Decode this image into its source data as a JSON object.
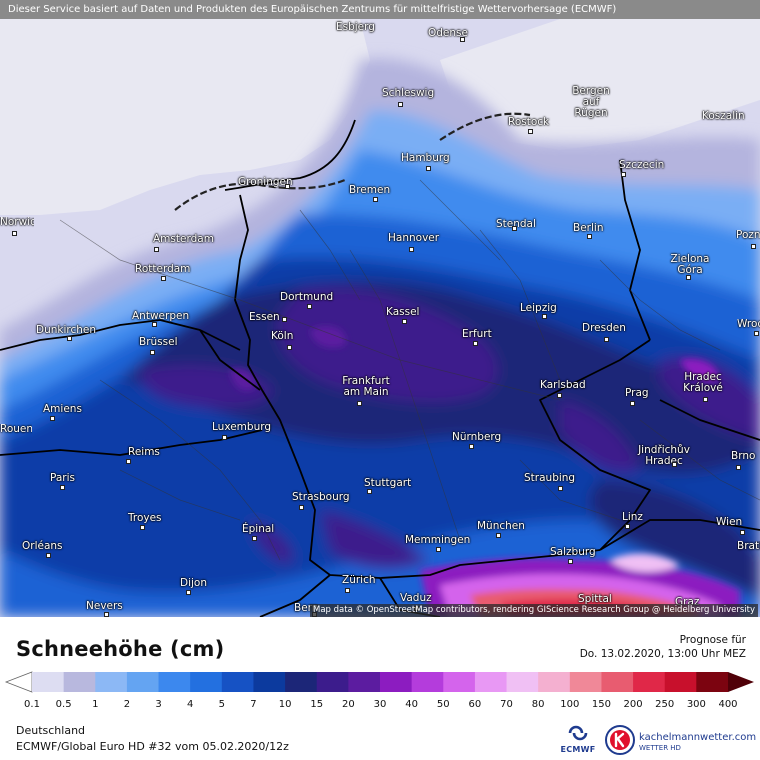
{
  "header": {
    "banner": "Dieser Service basiert auf Daten und Produkten des Europäischen Zentrums für mittelfristige Wettervorhersage (ECMWF)",
    "attribution": "Map data © OpenStreetMap contributors, rendering GIScience Research Group @ Heidelberg University"
  },
  "cities": [
    {
      "name": "Esbjerg"
    },
    {
      "name": "Odense"
    },
    {
      "name": "Schleswig"
    },
    {
      "name": "Bergen auf Rügen"
    },
    {
      "name": "Rostock"
    },
    {
      "name": "Koszalin"
    },
    {
      "name": "Hamburg"
    },
    {
      "name": "Szczecin"
    },
    {
      "name": "Groningen"
    },
    {
      "name": "Bremen"
    },
    {
      "name": "Norwich"
    },
    {
      "name": "Amsterdam"
    },
    {
      "name": "Hannover"
    },
    {
      "name": "Stendal"
    },
    {
      "name": "Berlin"
    },
    {
      "name": "Poznań"
    },
    {
      "name": "Rotterdam"
    },
    {
      "name": "Zielona Góra"
    },
    {
      "name": "Dortmund"
    },
    {
      "name": "Antwerpen"
    },
    {
      "name": "Essen"
    },
    {
      "name": "Kassel"
    },
    {
      "name": "Leipzig"
    },
    {
      "name": "Dunkirchen"
    },
    {
      "name": "Brüssel"
    },
    {
      "name": "Köln"
    },
    {
      "name": "Erfurt"
    },
    {
      "name": "Dresden"
    },
    {
      "name": "Wrocław"
    },
    {
      "name": "Hradec Králové"
    },
    {
      "name": "Frankfurt am Main"
    },
    {
      "name": "Karlsbad"
    },
    {
      "name": "Amiens"
    },
    {
      "name": "Prag"
    },
    {
      "name": "Rouen"
    },
    {
      "name": "Luxemburg"
    },
    {
      "name": "Nürnberg"
    },
    {
      "name": "Jindřichův Hradec"
    },
    {
      "name": "Reims"
    },
    {
      "name": "Brno"
    },
    {
      "name": "Paris"
    },
    {
      "name": "Stuttgart"
    },
    {
      "name": "Straubing"
    },
    {
      "name": "Strasbourg"
    },
    {
      "name": "Troyes"
    },
    {
      "name": "Linz"
    },
    {
      "name": "Wien"
    },
    {
      "name": "Épinal"
    },
    {
      "name": "München"
    },
    {
      "name": "Orléans"
    },
    {
      "name": "Memmingen"
    },
    {
      "name": "Salzburg"
    },
    {
      "name": "Bratislava"
    },
    {
      "name": "Zürich"
    },
    {
      "name": "Dijon"
    },
    {
      "name": "Vaduz"
    },
    {
      "name": "Spittal"
    },
    {
      "name": "Nevers"
    },
    {
      "name": "Bern"
    },
    {
      "name": "Graz"
    }
  ],
  "legend": {
    "title": "Schneehöhe (cm)",
    "forecast_label": "Prognose für",
    "forecast_date": "Do. 13.02.2020, 13:00 Uhr MEZ",
    "ticks": [
      "0.1",
      "0.5",
      "1",
      "2",
      "3",
      "4",
      "5",
      "7",
      "10",
      "15",
      "20",
      "30",
      "40",
      "50",
      "60",
      "70",
      "80",
      "100",
      "150",
      "200",
      "250",
      "300",
      "400"
    ],
    "colors": [
      "#ddddf2",
      "#b8b8de",
      "#8cb8f5",
      "#64a4f2",
      "#3c88ee",
      "#2370e0",
      "#1652c4",
      "#0c3a9e",
      "#1c2678",
      "#3c1c8c",
      "#5c1ca0",
      "#8c1cc0",
      "#b43cdc",
      "#d464ec",
      "#e898f4",
      "#f0c0f4",
      "#f4b0d0",
      "#f08898",
      "#e85c70",
      "#e02848",
      "#c8102c",
      "#a00818",
      "#7c0410",
      "#500008"
    ],
    "region": "Deutschland",
    "model": "ECMWF/Global Euro HD #32 vom  05.02.2020/12z"
  },
  "logos": {
    "ecmwf": "ECMWF",
    "kachelmann": "kachelmannwetter.com",
    "kachelmann_sub": "WETTER HD"
  }
}
